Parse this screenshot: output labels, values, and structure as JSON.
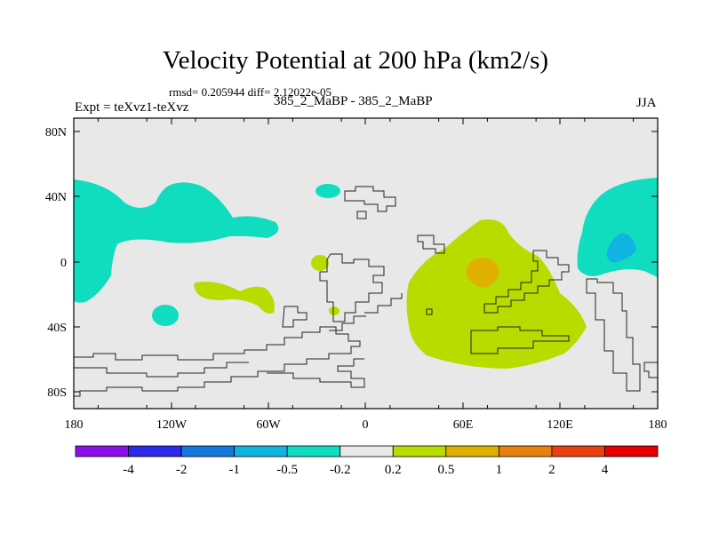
{
  "header": {
    "title": "Velocity Potential at 200 hPa (km2/s)",
    "stats": "rmsd= 0.205944 diff= 2.12022e-05",
    "expt": "Expt = teXvz1-teXvz",
    "comparison": "385_2_MaBP - 385_2_MaBP",
    "season": "JJA"
  },
  "axes": {
    "x_ticks": [
      "180",
      "120W",
      "60W",
      "0",
      "60E",
      "120E",
      "180"
    ],
    "y_ticks": [
      "80N",
      "40N",
      "0",
      "40S",
      "80S"
    ]
  },
  "colorbar": {
    "labels": [
      "-4",
      "-2",
      "-1",
      "-0.5",
      "-0.2",
      "0.2",
      "0.5",
      "1",
      "2",
      "4"
    ],
    "colors": [
      "#8a12e8",
      "#2a2ae8",
      "#1478dc",
      "#10b4e0",
      "#10dcc0",
      "#e8e8e8",
      "#b8dc00",
      "#e0b000",
      "#e88010",
      "#e84010",
      "#e80000"
    ]
  },
  "colors": {
    "background": "#e8e8e8",
    "negative_fill": "#10dcc0",
    "negative_strong_fill": "#10b4e0",
    "positive_fill": "#b8dc00",
    "positive_strong_fill": "#e0b000"
  }
}
